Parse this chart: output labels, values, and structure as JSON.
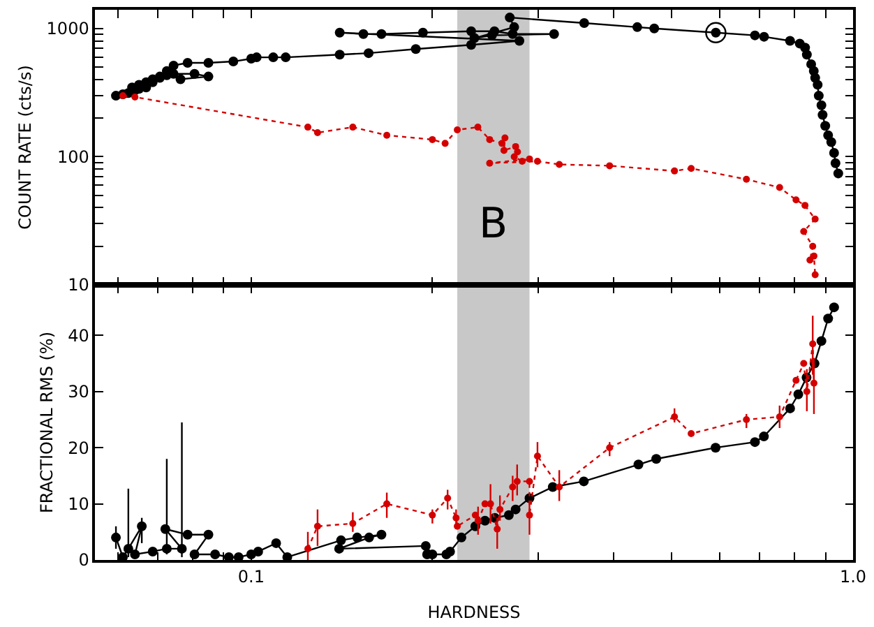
{
  "chart_data": [
    {
      "type": "line",
      "ylabel": "COUNT RATE (cts/s)",
      "log": "xy",
      "tick_labels": "y",
      "grid": false,
      "marker": "circle",
      "xlim": [
        0.055,
        1.0
      ],
      "xticks": [
        {
          "value": 0.06,
          "label": null
        },
        {
          "value": 0.07,
          "label": null
        },
        {
          "value": 0.08,
          "label": null
        },
        {
          "value": 0.09,
          "label": null
        },
        {
          "value": 0.1,
          "label": null
        },
        {
          "value": 0.2,
          "label": null
        },
        {
          "value": 0.3,
          "label": null
        },
        {
          "value": 0.4,
          "label": null
        },
        {
          "value": 0.5,
          "label": null
        },
        {
          "value": 0.6,
          "label": null
        },
        {
          "value": 0.7,
          "label": null
        },
        {
          "value": 0.8,
          "label": null
        },
        {
          "value": 0.9,
          "label": null
        },
        {
          "value": 1.0,
          "label": null
        }
      ],
      "ylim": [
        10,
        1400
      ],
      "yticks": [
        10,
        100,
        1000,
        {
          "value": 20,
          "label": null
        },
        {
          "value": 30,
          "label": null
        },
        {
          "value": 40,
          "label": null
        },
        {
          "value": 50,
          "label": null
        },
        {
          "value": 60,
          "label": null
        },
        {
          "value": 70,
          "label": null
        },
        {
          "value": 80,
          "label": null
        },
        {
          "value": 90,
          "label": null
        },
        {
          "value": 200,
          "label": null
        },
        {
          "value": 300,
          "label": null
        },
        {
          "value": 400,
          "label": null
        },
        {
          "value": 500,
          "label": null
        },
        {
          "value": 600,
          "label": null
        },
        {
          "value": 700,
          "label": null
        },
        {
          "value": 800,
          "label": null
        },
        {
          "value": 900,
          "label": null
        }
      ],
      "bands": [
        {
          "axis": "x",
          "from": 0.22,
          "to": 0.29,
          "label": "B",
          "color": "#c8c8c8"
        }
      ],
      "series": [
        {
          "color": "#000000",
          "line_style": "solid",
          "x": [
            0.0596,
            0.0612,
            0.0625,
            0.0641,
            0.0634,
            0.0651,
            0.0669,
            0.0686,
            0.0705,
            0.0724,
            0.0686,
            0.0651,
            0.0669,
            0.0705,
            0.0743,
            0.0805,
            0.0849,
            0.0763,
            0.0724,
            0.0743,
            0.0784,
            0.0849,
            0.0934,
            0.1,
            0.1021,
            0.1088,
            0.1141,
            0.1403,
            0.1567,
            0.1877,
            0.232,
            0.279,
            0.1403,
            0.1536,
            0.1646,
            0.1929,
            0.232,
            0.2536,
            0.2719,
            0.3186,
            0.2512,
            0.2349,
            0.2735,
            0.2689,
            0.3575,
            0.438,
            0.4674,
            0.5915,
            0.687,
            0.7114,
            0.7857,
            0.8155,
            0.8323,
            0.838,
            0.852,
            0.8605,
            0.8651,
            0.8733,
            0.877,
            0.886,
            0.89,
            0.899,
            0.909,
            0.92,
            0.93,
            0.935,
            0.945
          ],
          "values": [
            299,
            307,
            314,
            330,
            347,
            364,
            347,
            381,
            412,
            432,
            402,
            338,
            381,
            422,
            443,
            443,
            422,
            402,
            466,
            514,
            540,
            540,
            553,
            582,
            596,
            596,
            596,
            626,
            642,
            691,
            745,
            801,
            929,
            906,
            906,
            929,
            952,
            952,
            906,
            906,
            884,
            842,
            1025,
            1218,
            1104,
            1025,
            1000,
            929,
            884,
            862,
            801,
            763,
            709,
            626,
            527,
            466,
            412,
            364,
            299,
            252,
            212,
            174,
            147,
            130,
            107,
            89,
            74
          ]
        },
        {
          "color": "#d40000",
          "line_style": "dotted",
          "x": [
            0.0612,
            0.0641,
            0.1242,
            0.1289,
            0.1475,
            0.168,
            0.2,
            0.21,
            0.22,
            0.238,
            0.249,
            0.261,
            0.264,
            0.263,
            0.275,
            0.277,
            0.2735,
            0.282,
            0.29,
            0.249,
            0.299,
            0.325,
            0.394,
            0.505,
            0.5383,
            0.665,
            0.755,
            0.804,
            0.832,
            0.865,
            0.828,
            0.857,
            0.848,
            0.861,
            0.865
          ],
          "values": [
            299,
            292,
            170,
            154,
            170,
            147,
            136,
            127,
            162,
            170,
            136,
            127,
            140,
            112,
            120,
            109,
            100,
            92,
            96,
            89,
            92,
            87,
            85,
            77.4,
            81,
            66.6,
            57.5,
            46,
            41.7,
            32.6,
            26.1,
            20,
            15.6,
            16.8,
            12
          ]
        },
        {
          "type": "scatter",
          "color": "#000000",
          "x": [
            0.5915
          ],
          "values": [
            929
          ]
        }
      ]
    },
    {
      "type": "line",
      "xlabel": "HARDNESS",
      "ylabel": "FRACTIONAL RMS (%)",
      "log": "x",
      "grid": false,
      "marker": "circle",
      "xlim": [
        0.055,
        1.0
      ],
      "xticks": [
        {
          "value": 0.06,
          "label": null
        },
        {
          "value": 0.07,
          "label": null
        },
        {
          "value": 0.08,
          "label": null
        },
        {
          "value": 0.09,
          "label": null
        },
        0.1,
        {
          "value": 0.2,
          "label": null
        },
        {
          "value": 0.3,
          "label": null
        },
        {
          "value": 0.4,
          "label": null
        },
        {
          "value": 0.5,
          "label": null
        },
        {
          "value": 0.6,
          "label": null
        },
        {
          "value": 0.7,
          "label": null
        },
        {
          "value": 0.8,
          "label": null
        },
        {
          "value": 0.9,
          "label": null
        },
        {
          "value": 1.0,
          "label": "1.0"
        }
      ],
      "ylim": [
        0,
        49
      ],
      "yticks": [
        0,
        10,
        20,
        30,
        40
      ],
      "bands": [
        {
          "axis": "x",
          "from": 0.22,
          "to": 0.29,
          "color": "#c8c8c8"
        }
      ],
      "series": [
        {
          "color": "#000000",
          "line_style": "solid",
          "x": [
            0.0596,
            0.0612,
            0.0625,
            0.0658,
            0.0641,
            0.0686,
            0.0724,
            0.0767,
            0.072,
            0.0784,
            0.0849,
            0.0805,
            0.0871,
            0.0918,
            0.0953,
            0.1,
            0.1027,
            0.11,
            0.1148,
            0.141,
            0.15,
            0.1646,
            0.157,
            0.14,
            0.195,
            0.2,
            0.196,
            0.211,
            0.214,
            0.2235,
            0.2357,
            0.2446,
            0.254,
            0.268,
            0.275,
            0.29,
            0.317,
            0.357,
            0.44,
            0.471,
            0.591,
            0.687,
            0.711,
            0.786,
            0.811,
            0.837,
            0.863,
            0.886,
            0.909,
            0.93
          ],
          "values": [
            4,
            0.5,
            2,
            6,
            1,
            1.5,
            2,
            2,
            5.5,
            4.5,
            4.5,
            1,
            1,
            0.5,
            0.5,
            1,
            1.5,
            3,
            0.5,
            3.5,
            4,
            4.5,
            4,
            2,
            2.5,
            1,
            1,
            1,
            1.5,
            4,
            6,
            7,
            7.5,
            8,
            9,
            11,
            13,
            14,
            17,
            18,
            20,
            21,
            22,
            27,
            29.5,
            32.5,
            35,
            39,
            43,
            45
          ],
          "errors": [
            [
              2,
              6
            ],
            null,
            [
              0.5,
              12.7
            ],
            [
              3,
              7.5
            ],
            null,
            null,
            [
              1,
              18
            ],
            [
              0.5,
              24.5
            ],
            null,
            null,
            null,
            null,
            null,
            null,
            null,
            null,
            null,
            null,
            null,
            null,
            null,
            null,
            null,
            null,
            null,
            null,
            null,
            null,
            null,
            null,
            null,
            null,
            null,
            null,
            null,
            null,
            null,
            null,
            null,
            null,
            null,
            null,
            null,
            null,
            null,
            null,
            null,
            null,
            null,
            null
          ]
        },
        {
          "color": "#d40000",
          "line_style": "dotted",
          "x": [
            0.1242,
            0.1289,
            0.1475,
            0.168,
            0.2,
            0.212,
            0.219,
            0.22,
            0.2357,
            0.2382,
            0.2446,
            0.2498,
            0.2563,
            0.259,
            0.2719,
            0.2766,
            0.29,
            0.29,
            0.299,
            0.325,
            0.394,
            0.505,
            0.5383,
            0.665,
            0.755,
            0.804,
            0.828,
            0.838,
            0.857,
            0.861
          ],
          "values": [
            2,
            6,
            6.5,
            10,
            8,
            11,
            7.5,
            6,
            8,
            7,
            10,
            10,
            5.5,
            9,
            13,
            14,
            14,
            8,
            18.5,
            13,
            20,
            25.5,
            22.5,
            25,
            25.5,
            32,
            35,
            30,
            38.5,
            31.5
          ],
          "errors": [
            [
              0,
              5
            ],
            [
              2.5,
              9
            ],
            [
              5,
              8.5
            ],
            [
              7.5,
              12
            ],
            [
              6.5,
              9
            ],
            [
              9,
              12.5
            ],
            [
              6,
              9
            ],
            null,
            null,
            [
              4.5,
              9.5
            ],
            null,
            [
              6.5,
              13.5
            ],
            [
              2,
              7.5
            ],
            [
              7,
              11.5
            ],
            [
              10.5,
              15
            ],
            [
              11.5,
              17
            ],
            null,
            [
              4.5,
              10.5
            ],
            [
              16.5,
              21
            ],
            [
              10.5,
              16
            ],
            [
              18.5,
              21
            ],
            [
              24.5,
              27
            ],
            null,
            [
              23.5,
              26
            ],
            [
              23.5,
              27.5
            ],
            null,
            null,
            [
              26.5,
              34
            ],
            [
              33,
              43.5
            ],
            [
              26,
              36
            ]
          ]
        }
      ]
    }
  ]
}
